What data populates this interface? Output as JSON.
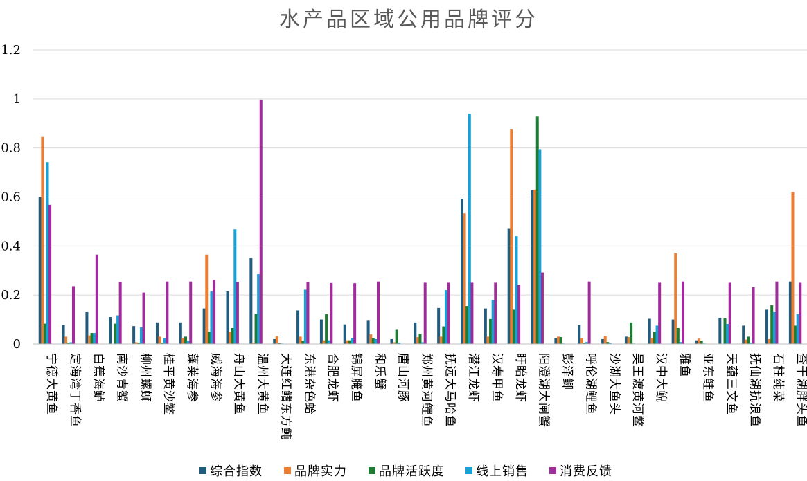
{
  "chart_data": {
    "type": "bar",
    "title": "水产品区域公用品牌评分",
    "xlabel": "",
    "ylabel": "",
    "ylim": [
      0,
      1.2
    ],
    "yticks": [
      "0",
      "0.2",
      "0.4",
      "0.6",
      "0.8",
      "1",
      "1.2"
    ],
    "grid": true,
    "legend_position": "bottom",
    "categories": [
      "宁德大黄鱼",
      "定海湾丁香鱼",
      "白蕉海鲈",
      "南沙青蟹",
      "柳州螺蛳",
      "桂平黄沙鳖",
      "蓬莱海参",
      "威海海参",
      "舟山大黄鱼",
      "温州大黄鱼",
      "大连红鳍东方鲀",
      "东港杂色蛤",
      "合肥龙虾",
      "锦屏腌鱼",
      "和乐蟹",
      "唐山河豚",
      "郑州黄河鲤鱼",
      "抚远大马哈鱼",
      "潜江龙虾",
      "汉寿甲鱼",
      "盱眙龙虾",
      "阳澄湖大闸蟹",
      "彭泽鲫",
      "呼伦湖鲤鱼",
      "沙湖大鱼头",
      "吴王渡黄河鳖",
      "汉中大鲵",
      "雅鱼",
      "亚东鲑鱼",
      "天蕴三文鱼",
      "抚仙湖抗浪鱼",
      "石柱莼菜",
      "查干湖胖头鱼"
    ],
    "series": [
      {
        "name": "综合指数",
        "color": "#1f5c7d",
        "values": [
          0.6,
          0.077,
          0.13,
          0.11,
          0.073,
          0.088,
          0.088,
          0.145,
          0.215,
          0.35,
          0.02,
          0.137,
          0.1,
          0.08,
          0.095,
          0.02,
          0.088,
          0.147,
          0.593,
          0.145,
          0.47,
          0.628,
          0.025,
          0.077,
          0.02,
          0.03,
          0.103,
          0.1,
          0.015,
          0.107,
          0.075,
          0.14,
          0.255
        ]
      },
      {
        "name": "品牌实力",
        "color": "#ed7d31",
        "values": [
          0.845,
          0.03,
          0.035,
          0.0,
          0.007,
          0.03,
          0.025,
          0.365,
          0.05,
          0.005,
          0.032,
          0.03,
          0.015,
          0.015,
          0.04,
          0.007,
          0.028,
          0.03,
          0.533,
          0.03,
          0.875,
          0.63,
          0.03,
          0.025,
          0.032,
          0.028,
          0.025,
          0.37,
          0.022,
          0.0,
          0.018,
          0.02,
          0.62
        ]
      },
      {
        "name": "品牌活跃度",
        "color": "#1e7b34",
        "values": [
          0.083,
          0.005,
          0.045,
          0.083,
          0.005,
          0.005,
          0.03,
          0.05,
          0.065,
          0.123,
          0.003,
          0.013,
          0.122,
          0.015,
          0.025,
          0.058,
          0.042,
          0.072,
          0.155,
          0.102,
          0.14,
          0.928,
          0.028,
          0.005,
          0.008,
          0.088,
          0.05,
          0.065,
          0.013,
          0.105,
          0.03,
          0.158,
          0.075
        ]
      },
      {
        "name": "线上销售",
        "color": "#17a2d6",
        "values": [
          0.742,
          0.007,
          0.045,
          0.117,
          0.068,
          0.025,
          0.013,
          0.215,
          0.468,
          0.285,
          0.002,
          0.222,
          0.015,
          0.025,
          0.02,
          0.005,
          0.007,
          0.22,
          0.94,
          0.18,
          0.44,
          0.792,
          0.002,
          0.008,
          0.003,
          0.002,
          0.075,
          0.008,
          0.002,
          0.082,
          0.005,
          0.13,
          0.122
        ]
      },
      {
        "name": "消费反馈",
        "color": "#a02b9a",
        "values": [
          0.568,
          0.236,
          0.365,
          0.253,
          0.21,
          0.255,
          0.255,
          0.262,
          0.253,
          0.997,
          0.0,
          0.253,
          0.249,
          0.248,
          0.255,
          0.0,
          0.25,
          0.25,
          0.25,
          0.25,
          0.24,
          0.292,
          0.0,
          0.255,
          0.0,
          0.0,
          0.25,
          0.255,
          0.0,
          0.25,
          0.232,
          0.255,
          0.25
        ]
      }
    ]
  }
}
